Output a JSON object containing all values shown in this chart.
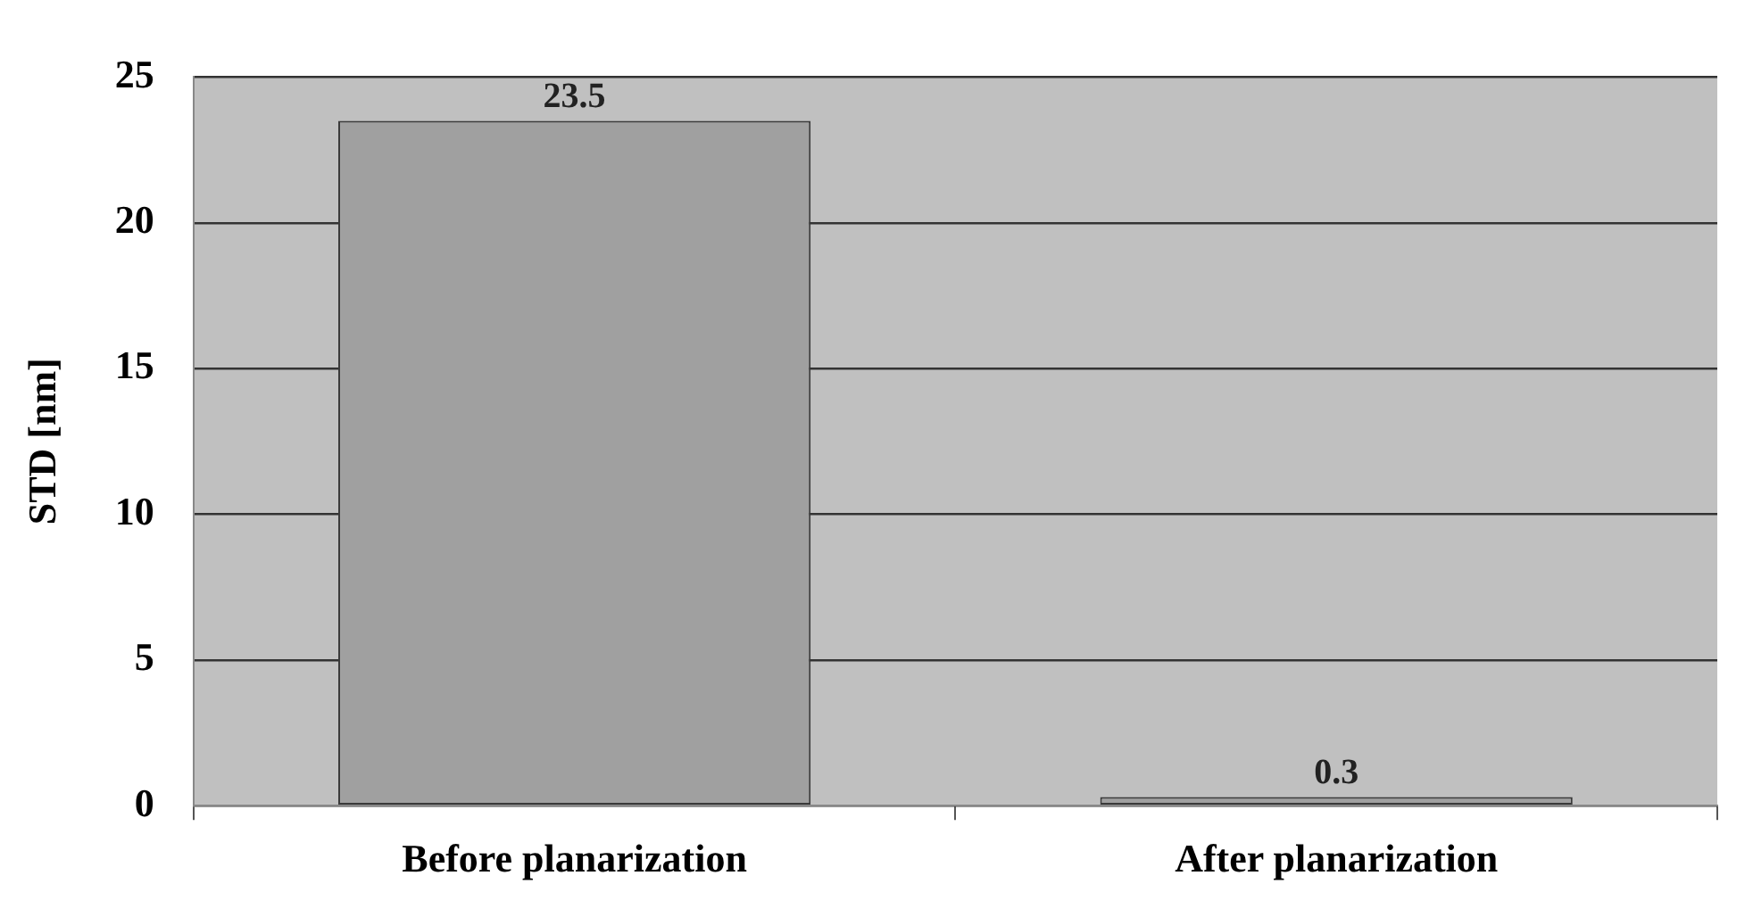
{
  "chart_data": {
    "type": "bar",
    "ylabel": "STD [nm]",
    "categories": [
      "Before planarization",
      "After planarization"
    ],
    "values": [
      23.5,
      0.3
    ],
    "color": "#a0a0a0",
    "ylim": [
      0,
      25
    ],
    "yticks": [
      0,
      5,
      10,
      15,
      20,
      25
    ],
    "grid": "y",
    "data_labels": true,
    "legend": false
  }
}
